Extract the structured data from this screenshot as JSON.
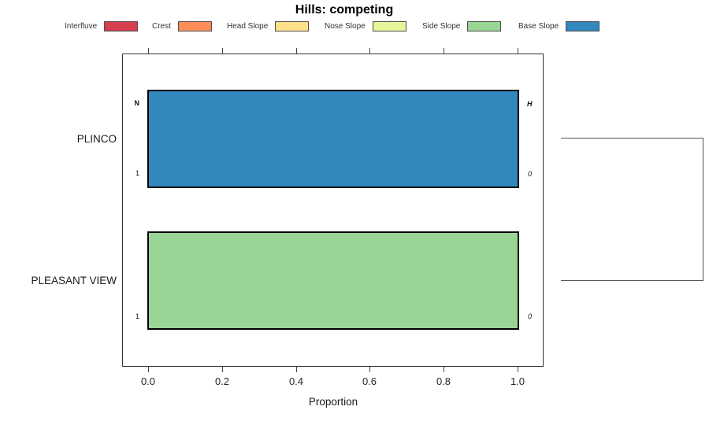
{
  "title": "Hills: competing",
  "legend": {
    "items": [
      {
        "label": "Interfluve",
        "color": "#D53E4F"
      },
      {
        "label": "Crest",
        "color": "#FC8D59"
      },
      {
        "label": "Head Slope",
        "color": "#FEE08B"
      },
      {
        "label": "Nose Slope",
        "color": "#E6F598"
      },
      {
        "label": "Side Slope",
        "color": "#99D594"
      },
      {
        "label": "Base Slope",
        "color": "#3288BD"
      }
    ]
  },
  "chart_data": {
    "type": "bar",
    "orientation": "horizontal",
    "title": "Hills: competing",
    "xlabel": "Proportion",
    "xlim": [
      0,
      1
    ],
    "xticks": [
      0.0,
      0.2,
      0.4,
      0.6,
      0.8,
      1.0
    ],
    "xtick_labels": [
      "0.0",
      "0.2",
      "0.4",
      "0.6",
      "0.8",
      "1.0"
    ],
    "categories": [
      "PLINCO",
      "PLEASANT VIEW"
    ],
    "series": [
      {
        "name": "Interfluve",
        "color": "#D53E4F",
        "values": [
          0,
          0
        ]
      },
      {
        "name": "Crest",
        "color": "#FC8D59",
        "values": [
          0,
          0
        ]
      },
      {
        "name": "Head Slope",
        "color": "#FEE08B",
        "values": [
          0,
          0
        ]
      },
      {
        "name": "Nose Slope",
        "color": "#E6F598",
        "values": [
          0,
          0
        ]
      },
      {
        "name": "Side Slope",
        "color": "#99D594",
        "values": [
          0,
          1.0
        ]
      },
      {
        "name": "Base Slope",
        "color": "#3288BD",
        "values": [
          1.0,
          0
        ]
      }
    ],
    "legend_position": "top",
    "grid": false
  },
  "bars": [
    {
      "category": "PLINCO",
      "segment": "Base Slope",
      "proportion": 1.0,
      "color": "#3288BD",
      "corner_labels": {
        "top_left": "N",
        "bottom_left": "1",
        "top_right": "H",
        "bottom_right": "0"
      }
    },
    {
      "category": "PLEASANT VIEW",
      "segment": "Side Slope",
      "proportion": 1.0,
      "color": "#99D594",
      "corner_labels": {
        "bottom_left": "1",
        "bottom_right": "0"
      }
    }
  ]
}
